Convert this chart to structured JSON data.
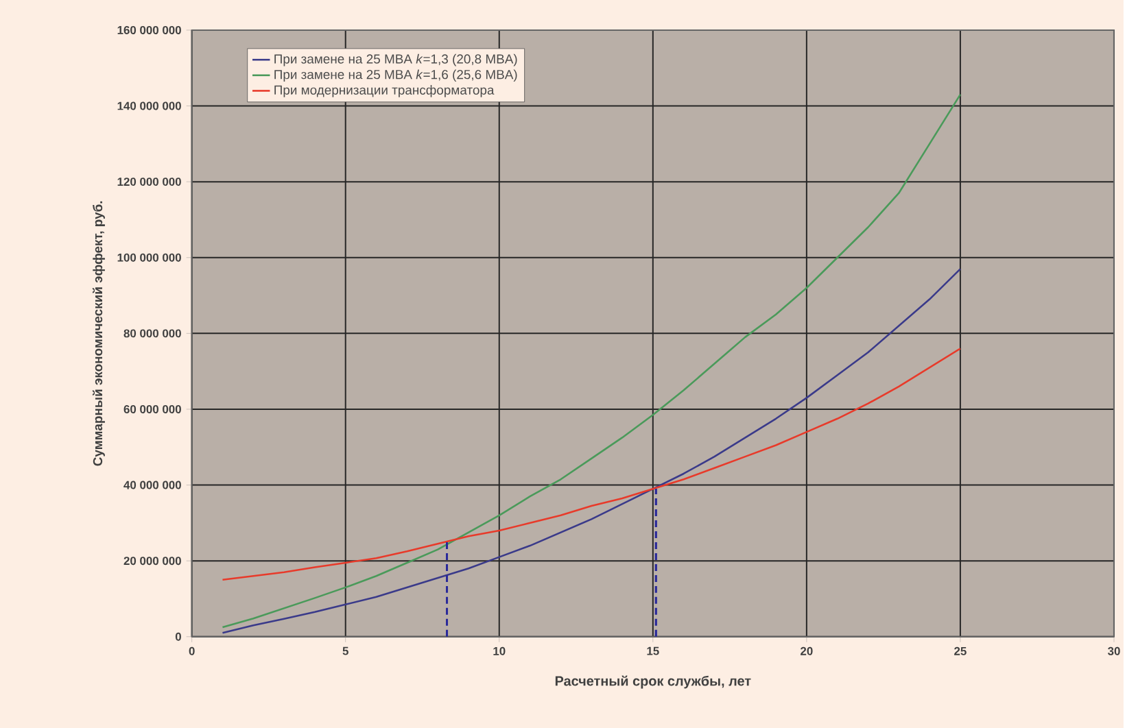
{
  "chart_data": {
    "type": "line",
    "xlabel": "Расчетный срок службы, лет",
    "ylabel": "Суммарный экономический эффект, руб.",
    "xlim": [
      0,
      30
    ],
    "xticks": [
      0,
      5,
      10,
      15,
      20,
      25,
      30
    ],
    "ylim": [
      0,
      160000000
    ],
    "yticks": [
      {
        "value": 0,
        "label": "0"
      },
      {
        "value": 20000000,
        "label": "20 000 000"
      },
      {
        "value": 40000000,
        "label": "40 000 000"
      },
      {
        "value": 60000000,
        "label": "60 000 000"
      },
      {
        "value": 80000000,
        "label": "80 000 000"
      },
      {
        "value": 100000000,
        "label": "100 000 000"
      },
      {
        "value": 120000000,
        "label": "120 000 000"
      },
      {
        "value": 140000000,
        "label": "140 000 000"
      },
      {
        "value": 160000000,
        "label": "160 000 000"
      }
    ],
    "grid": true,
    "legend": "top left",
    "marker": "none",
    "line_style": "solid",
    "series": [
      {
        "name": "При замене на 25 MBA *k*=1,3 (20,8 MBA)",
        "color": "#3a3a8a",
        "x": [
          1,
          2,
          3,
          4,
          5,
          6,
          7,
          8,
          9,
          10,
          11,
          12,
          13,
          14,
          15,
          16,
          17,
          18,
          19,
          20,
          21,
          22,
          23,
          24,
          25
        ],
        "values": [
          1000000,
          3000000,
          4700000,
          6500000,
          8500000,
          10500000,
          13000000,
          15500000,
          18000000,
          21000000,
          24000000,
          27500000,
          31000000,
          35000000,
          39000000,
          43000000,
          47500000,
          52500000,
          57500000,
          63000000,
          69000000,
          75000000,
          82000000,
          89000000,
          97000000
        ]
      },
      {
        "name": "При замене на 25 MBA *k*=1,6 (25,6 MBA)",
        "color": "#4a9a5a",
        "x": [
          1,
          2,
          3,
          4,
          5,
          6,
          7,
          8,
          9,
          10,
          11,
          12,
          13,
          14,
          15,
          16,
          17,
          18,
          19,
          20,
          21,
          22,
          23,
          24,
          25
        ],
        "values": [
          2500000,
          4800000,
          7500000,
          10200000,
          13000000,
          16000000,
          19500000,
          23000000,
          27500000,
          32000000,
          37000000,
          41500000,
          47000000,
          52500000,
          58500000,
          65000000,
          72000000,
          79000000,
          85000000,
          92000000,
          100000000,
          108000000,
          117000000,
          130000000,
          143000000
        ]
      },
      {
        "name": "При модернизации трансформатора",
        "color": "#e83a2a",
        "x": [
          1,
          2,
          3,
          4,
          5,
          6,
          7,
          8,
          9,
          10,
          11,
          12,
          13,
          14,
          15,
          16,
          17,
          18,
          19,
          20,
          21,
          22,
          23,
          24,
          25
        ],
        "values": [
          15000000,
          16000000,
          17000000,
          18300000,
          19500000,
          20700000,
          22500000,
          24500000,
          26500000,
          28000000,
          30000000,
          32000000,
          34500000,
          36500000,
          39000000,
          41500000,
          44500000,
          47500000,
          50500000,
          54000000,
          57500000,
          61500000,
          66000000,
          71000000,
          76000000
        ]
      },
      {
        "type": "line",
        "line_style": "dashed",
        "color": "#2a2a9a",
        "x": [
          8.3,
          8.3
        ],
        "values": [
          0,
          25000000
        ]
      },
      {
        "type": "line",
        "line_style": "dashed",
        "color": "#2a2a9a",
        "x": [
          15.1,
          15.1
        ],
        "values": [
          0,
          39000000
        ]
      }
    ]
  }
}
